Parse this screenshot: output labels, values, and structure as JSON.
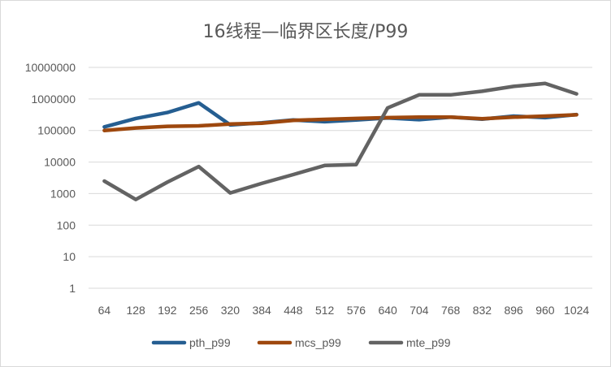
{
  "chart_data": {
    "type": "line",
    "title": "16线程—临界区长度/P99",
    "xlabel": "",
    "ylabel": "",
    "categories": [
      "64",
      "128",
      "192",
      "256",
      "320",
      "384",
      "448",
      "512",
      "576",
      "640",
      "704",
      "768",
      "832",
      "896",
      "960",
      "1024"
    ],
    "y_scale": "log",
    "ylim": [
      1,
      10000000
    ],
    "yticks": [
      1,
      10,
      100,
      1000,
      10000,
      100000,
      1000000,
      10000000
    ],
    "ytick_labels": [
      "1",
      "10",
      "100",
      "1000",
      "10000",
      "100000",
      "1000000",
      "10000000"
    ],
    "grid": true,
    "legend_position": "bottom",
    "series": [
      {
        "name": "pth_p99",
        "color": "#255e91",
        "values": [
          130000,
          240000,
          370000,
          750000,
          150000,
          175000,
          215000,
          190000,
          215000,
          250000,
          220000,
          265000,
          230000,
          285000,
          255000,
          320000
        ]
      },
      {
        "name": "mcs_p99",
        "color": "#9e480e",
        "values": [
          100000,
          120000,
          135000,
          140000,
          160000,
          170000,
          210000,
          225000,
          240000,
          255000,
          265000,
          265000,
          235000,
          265000,
          285000,
          315000
        ]
      },
      {
        "name": "mte_p99",
        "color": "#636363",
        "values": [
          2500,
          650,
          2300,
          7200,
          1050,
          2100,
          4000,
          7800,
          8300,
          520000,
          1350000,
          1350000,
          1750000,
          2500000,
          3100000,
          1450000
        ]
      }
    ]
  }
}
